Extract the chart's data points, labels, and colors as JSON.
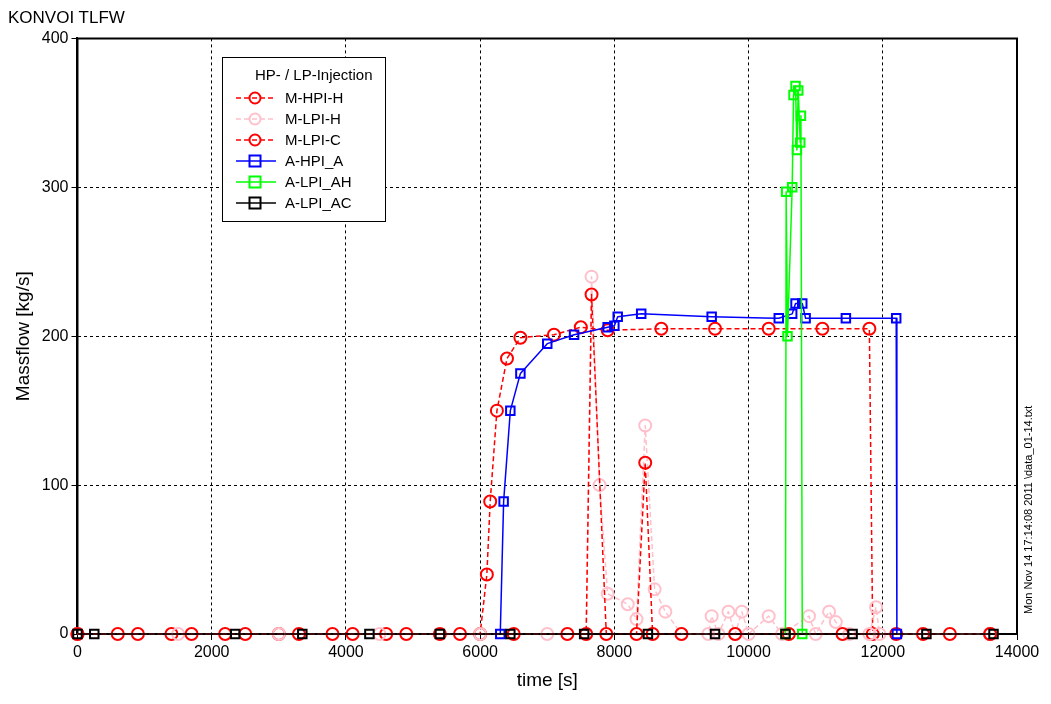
{
  "chart_data": {
    "type": "line",
    "title": "KONVOI TLFW",
    "xlabel": "time [s]",
    "ylabel": "Massflow [kg/s]",
    "legend_title": "HP- / LP-Injection",
    "legend": "top left",
    "grid": true,
    "xlim": [
      0,
      14000
    ],
    "xticks": [
      0,
      2000,
      4000,
      6000,
      8000,
      10000,
      12000,
      14000
    ],
    "ylim": [
      0,
      400
    ],
    "yticks": [
      0,
      100,
      200,
      300,
      400
    ],
    "annotations": [
      "Mon Nov 14 17:14:08 2011 \\data_01-14.txt"
    ],
    "series": [
      {
        "name": "M-HPI-H",
        "color": "#ff0000",
        "marker": "circle",
        "line_style": "dashed",
        "x": [
          0,
          600,
          1400,
          2200,
          3000,
          3800,
          4600,
          5400,
          6000,
          6100,
          6150,
          6250,
          6400,
          6600,
          7100,
          7500,
          7900,
          8700,
          9500,
          10300,
          11100,
          11800,
          11850,
          12600,
          13600
        ],
        "values": [
          0,
          0,
          0,
          0,
          0,
          0,
          0,
          0,
          0,
          40,
          89,
          150,
          185,
          199,
          201,
          206,
          204,
          205,
          205,
          205,
          205,
          205,
          0,
          0,
          0
        ]
      },
      {
        "name": "M-LPI-H",
        "color": "#ffc0cb",
        "marker": "circle",
        "line_style": "dashed",
        "x": [
          0,
          1500,
          3000,
          4500,
          6000,
          7000,
          7580,
          7660,
          7780,
          7900,
          8200,
          8330,
          8460,
          8600,
          8760,
          9000,
          9400,
          9450,
          9550,
          9700,
          9800,
          9900,
          10000,
          10300,
          10500,
          10900,
          11000,
          11200,
          11300,
          11500,
          11800,
          11900,
          11950,
          13600
        ],
        "values": [
          0,
          0,
          0,
          0,
          0,
          0,
          0,
          240,
          100,
          27,
          20,
          10,
          140,
          30,
          15,
          0,
          0,
          12,
          0,
          15,
          0,
          15,
          0,
          12,
          0,
          12,
          0,
          15,
          8,
          0,
          0,
          18,
          0,
          0
        ]
      },
      {
        "name": "M-LPI-C",
        "color": "#ff0000",
        "marker": "circle",
        "line_style": "dashed",
        "x": [
          0,
          900,
          1700,
          2500,
          3300,
          4100,
          4900,
          5700,
          6500,
          7300,
          7580,
          7660,
          7880,
          8330,
          8460,
          8570,
          9000,
          9800,
          10600,
          11400,
          12200,
          13000,
          13600
        ],
        "values": [
          0,
          0,
          0,
          0,
          0,
          0,
          0,
          0,
          0,
          0,
          0,
          228,
          0,
          0,
          115,
          0,
          0,
          0,
          0,
          0,
          0,
          0,
          0
        ]
      },
      {
        "name": "A-HPI_A",
        "color": "#0000ff",
        "marker": "square",
        "line_style": "solid",
        "x": [
          6300,
          6350,
          6450,
          6600,
          7000,
          7400,
          7900,
          8000,
          8050,
          8400,
          9450,
          10450,
          10650,
          10700,
          10800,
          10850,
          11450,
          12200,
          12210
        ],
        "values": [
          0,
          89,
          150,
          175,
          195,
          201,
          206,
          207,
          213,
          215,
          213,
          212,
          215,
          222,
          222,
          212,
          212,
          212,
          0
        ]
      },
      {
        "name": "A-LPI_AH",
        "color": "#00ff00",
        "marker": "square",
        "line_style": "solid",
        "x": [
          10550,
          10560,
          10580,
          10650,
          10670,
          10700,
          10720,
          10740,
          10770,
          10780,
          10800
        ],
        "values": [
          0,
          297,
          200,
          300,
          362,
          368,
          325,
          365,
          330,
          348,
          0
        ]
      },
      {
        "name": "A-LPI_AC",
        "color": "#000000",
        "marker": "square",
        "line_style": "solid",
        "x": [
          0,
          250,
          2350,
          3350,
          4350,
          5400,
          6450,
          7550,
          8500,
          9500,
          10550,
          11550,
          12650,
          13650
        ],
        "values": [
          0,
          0,
          0,
          0,
          0,
          0,
          0,
          0,
          0,
          0,
          0,
          0,
          0,
          0
        ]
      }
    ]
  }
}
